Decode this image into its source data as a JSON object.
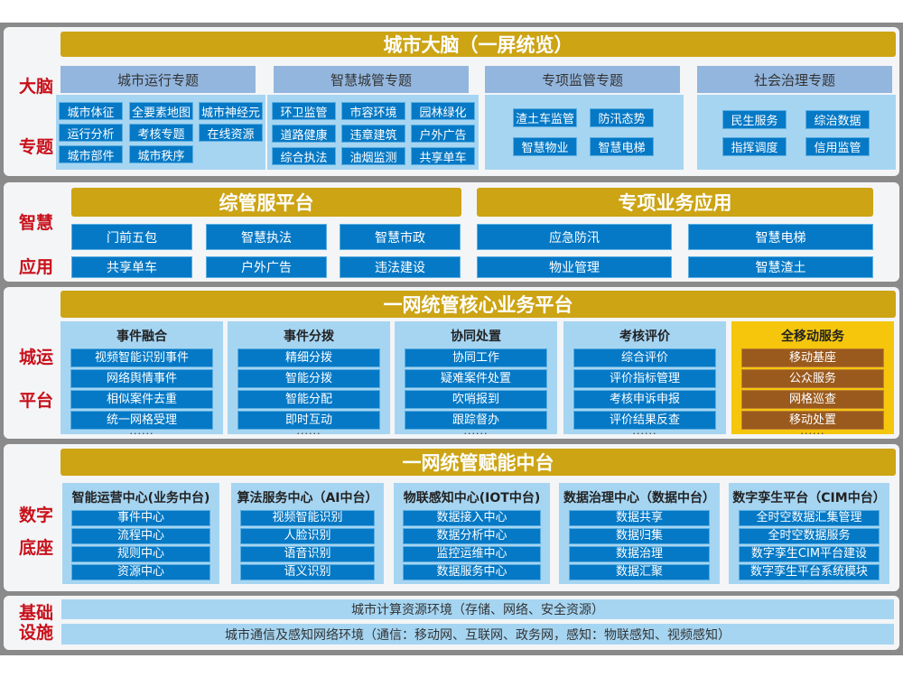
{
  "colors": {
    "gold": "#cca414",
    "label_red": "#c8101a",
    "item_blue": "#0579c6",
    "light_blue": "#a6d5f2",
    "theme_blue": "#93b6de",
    "mobile_yellow": "#f5c60c",
    "mobile_brown": "#9a5a1e"
  },
  "brain": {
    "side": [
      "大脑",
      "专题"
    ],
    "title": "城市大脑（一屏统览）",
    "themes": [
      {
        "title": "城市运行专题",
        "items": [
          "城市体征",
          "全要素地图",
          "城市神经元",
          "运行分析",
          "考核专题",
          "在线资源",
          "城市部件",
          "城市秩序"
        ]
      },
      {
        "title": "智慧城管专题",
        "items": [
          "环卫监管",
          "市容环境",
          "园林绿化",
          "道路健康",
          "违章建筑",
          "户外广告",
          "综合执法",
          "油烟监测",
          "共享单车"
        ]
      },
      {
        "title": "专项监管专题",
        "items": [
          "渣土车监管",
          "防汛态势",
          "智慧物业",
          "智慧电梯"
        ]
      },
      {
        "title": "社会治理专题",
        "items": [
          "民生服务",
          "综治数据",
          "指挥调度",
          "信用监管"
        ]
      }
    ]
  },
  "apps": {
    "side": [
      "智慧",
      "应用"
    ],
    "left": {
      "title": "综管服平台",
      "items": [
        "门前五包",
        "智慧执法",
        "智慧市政",
        "共享单车",
        "户外广告",
        "违法建设"
      ]
    },
    "right": {
      "title": "专项业务应用",
      "items": [
        "应急防汛",
        "智慧电梯",
        "物业管理",
        "智慧渣土"
      ]
    }
  },
  "ops": {
    "side": [
      "城运",
      "平台"
    ],
    "title": "一网统管核心业务平台",
    "columns": [
      {
        "title": "事件融合",
        "items": [
          "视频智能识别事件",
          "网络舆情事件",
          "相似案件去重",
          "统一网格受理"
        ],
        "more": "······"
      },
      {
        "title": "事件分拨",
        "items": [
          "精细分拨",
          "智能分拨",
          "智能分配",
          "即时互动"
        ],
        "more": "······"
      },
      {
        "title": "协同处置",
        "items": [
          "协同工作",
          "疑难案件处置",
          "吹哨报到",
          "跟踪督办"
        ],
        "more": "······"
      },
      {
        "title": "考核评价",
        "items": [
          "综合评价",
          "评价指标管理",
          "考核申诉申报",
          "评价结果反查"
        ],
        "more": "······"
      },
      {
        "title": "全移动服务",
        "items": [
          "移动基座",
          "公众服务",
          "网格巡查",
          "移动处置"
        ],
        "more": "······"
      }
    ]
  },
  "base": {
    "side": [
      "数字",
      "底座"
    ],
    "title": "一网统管赋能中台",
    "columns": [
      {
        "title": "智能运营中心(业务中台)",
        "items": [
          "事件中心",
          "流程中心",
          "规则中心",
          "资源中心"
        ]
      },
      {
        "title": "算法服务中心（AI中台）",
        "items": [
          "视频智能识别",
          "人脸识别",
          "语音识别",
          "语义识别"
        ]
      },
      {
        "title": "物联感知中心(IOT中台)",
        "items": [
          "数据接入中心",
          "数据分析中心",
          "监控运维中心",
          "数据服务中心"
        ]
      },
      {
        "title": "数据治理中心（数据中台）",
        "items": [
          "数据共享",
          "数据归集",
          "数据治理",
          "数据汇聚"
        ]
      },
      {
        "title": "数字孪生平台（CIM中台）",
        "items": [
          "全时空数据汇集管理",
          "全时空数据服务",
          "数字孪生CIM平台建设",
          "数字孪生平台系统模块"
        ]
      }
    ]
  },
  "infra": {
    "side": [
      "基础",
      "设施"
    ],
    "rows": [
      "城市计算资源环境（存储、网络、安全资源）",
      "城市通信及感知网络环境（通信：移动网、互联网、政务网，感知：物联感知、视频感知）"
    ]
  }
}
